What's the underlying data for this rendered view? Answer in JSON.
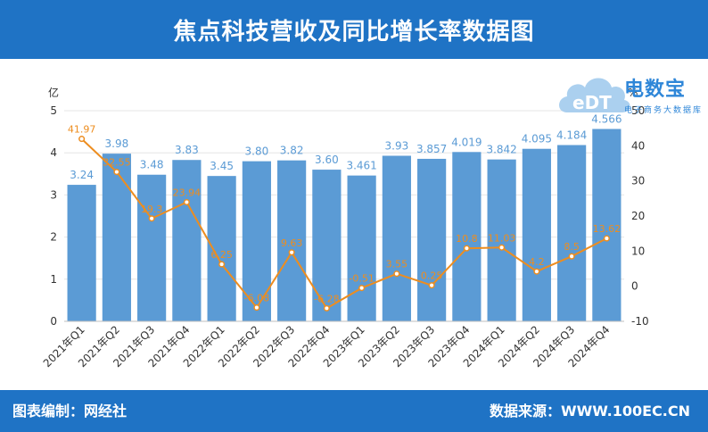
{
  "title": "焦点科技营收及同比增长率数据图",
  "footer": {
    "left": "图表编制：网经社",
    "right": "数据来源：WWW.100EC.CN"
  },
  "watermark": {
    "logo_text": "eDT",
    "name": "电数宝",
    "subtitle": "电子商务大数据库"
  },
  "colors": {
    "bar": "#5b9bd5",
    "line": "#ed8d1f",
    "header": "#1f73c5",
    "bar_label": "#5b9bd5"
  },
  "chart_data": {
    "type": "bar+line",
    "title": "焦点科技营收及同比增长率数据图",
    "categories": [
      "2021年Q1",
      "2021年Q2",
      "2021年Q3",
      "2021年Q4",
      "2022年Q1",
      "2022年Q2",
      "2022年Q3",
      "2022年Q4",
      "2023年Q1",
      "2023年Q2",
      "2023年Q3",
      "2023年Q4",
      "2024年Q1",
      "2024年Q2",
      "2024年Q3",
      "2024年Q4"
    ],
    "series": [
      {
        "type": "bar",
        "axis": "left",
        "values": [
          3.24,
          3.98,
          3.48,
          3.83,
          3.45,
          3.8,
          3.82,
          3.6,
          3.461,
          3.93,
          3.857,
          4.019,
          3.842,
          4.095,
          4.184,
          4.566
        ],
        "labels": [
          "3.24",
          "3.98",
          "3.48",
          "3.83",
          "3.45",
          "3.80",
          "3.82",
          "3.60",
          "3.461",
          "3.93",
          "3.857",
          "4.019",
          "3.842",
          "4.095",
          "4.184",
          "4.566"
        ]
      },
      {
        "type": "line",
        "axis": "right",
        "values": [
          41.97,
          32.55,
          19.3,
          23.94,
          6.25,
          -6.08,
          9.63,
          -6.28,
          -0.51,
          3.55,
          0.25,
          10.8,
          11.03,
          4.2,
          8.5,
          13.62
        ],
        "labels": [
          "41.97",
          "32.55",
          "19.3",
          "23.94",
          "6.25",
          "-6.08",
          "9.63",
          "-6.28",
          "-0.51",
          "3.55",
          "0.25",
          "10.8",
          "11.03",
          "4.2",
          "8.5",
          "13.62"
        ]
      }
    ],
    "y_left": {
      "unit": "亿",
      "min": 0,
      "max": 5,
      "ticks": [
        "0",
        "1",
        "2",
        "3",
        "4",
        "5"
      ]
    },
    "y_right": {
      "unit": "%",
      "min": -10,
      "max": 50,
      "ticks": [
        "-10",
        "0",
        "10",
        "20",
        "30",
        "40",
        "50"
      ]
    },
    "grid": true,
    "legend": "none"
  }
}
